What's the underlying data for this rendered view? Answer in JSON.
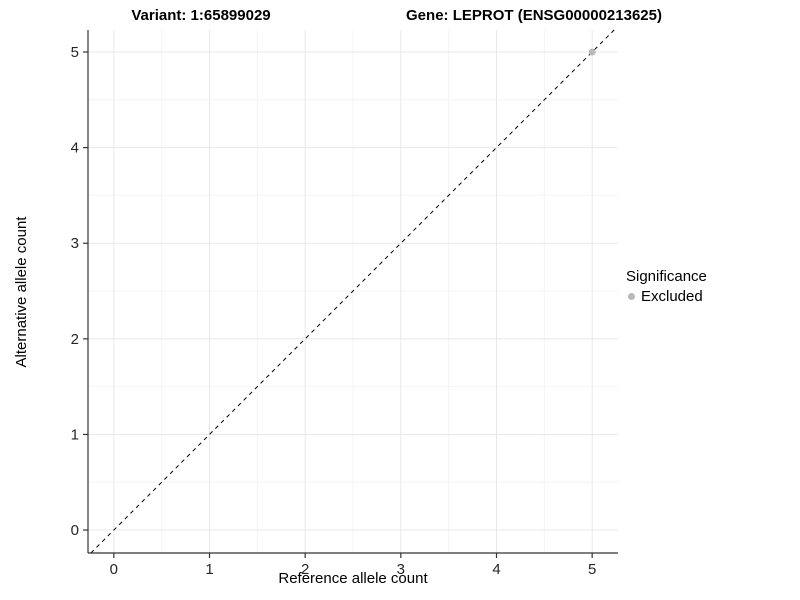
{
  "chart_data": {
    "type": "scatter",
    "title_left": "Variant: 1:65899029",
    "title_right": "Gene: LEPROT (ENSG00000213625)",
    "xlabel": "Reference allele count",
    "ylabel": "Alternative allele count",
    "xlim": [
      -0.27,
      5.27
    ],
    "ylim": [
      -0.24,
      5.23
    ],
    "x_ticks": [
      0,
      1,
      2,
      3,
      4,
      5
    ],
    "y_ticks": [
      0,
      1,
      2,
      3,
      4,
      5
    ],
    "grid": true,
    "minor_grid_step": 0.5,
    "reference_line": {
      "slope": 1,
      "intercept": 0,
      "style": "dashed",
      "color": "#000000"
    },
    "series": [
      {
        "name": "Excluded",
        "color": "#b9b9b9",
        "points": [
          {
            "x": 5,
            "y": 5
          }
        ]
      }
    ],
    "legend": {
      "title": "Significance",
      "position": "right",
      "entries": [
        {
          "label": "Excluded",
          "color": "#b9b9b9"
        }
      ]
    },
    "style": {
      "axis_color": "#333333",
      "grid_major_color": "#e8e8e8",
      "grid_minor_color": "#f4f4f4",
      "tick_label_color": "#262626",
      "point_radius": 3.5
    }
  }
}
